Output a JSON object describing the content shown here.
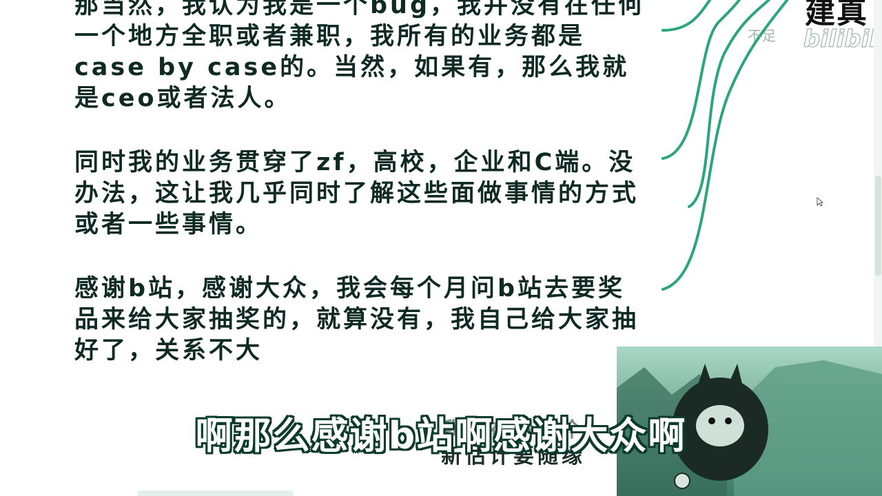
{
  "document": {
    "paragraphs": [
      "那当然，我认为我是一个bug，我并没有在任何一个地方全职或者兼职，我所有的业务都是case by case的。当然，如果有，那么我就是ceo或者法人。",
      "同时我的业务贯穿了zf，高校，企业和C端。没办法，这让我几乎同时了解这些面做事情的方式或者一些事情。",
      "感谢b站，感谢大众，我会每个月问b站去要奖品来给大家抽奖的，就算没有，我自己给大家抽好了，关系不大"
    ],
    "footer_line1": "我现在看了个",
    "footer_line2": "新估计要随缘"
  },
  "subtitle": "啊那么感谢b站啊感谢大众啊",
  "watermark": {
    "text": "不足",
    "logo": "bilibili",
    "corner_text": "建真"
  },
  "colors": {
    "branch": "#2aa57c",
    "text": "#0e2a22",
    "subtitle_outline": "#0c3b2b",
    "pip_bg": "#4f8a76"
  },
  "icons": {
    "cursor": "arrow-cursor-icon",
    "logo": "bilibili-logo-icon"
  }
}
